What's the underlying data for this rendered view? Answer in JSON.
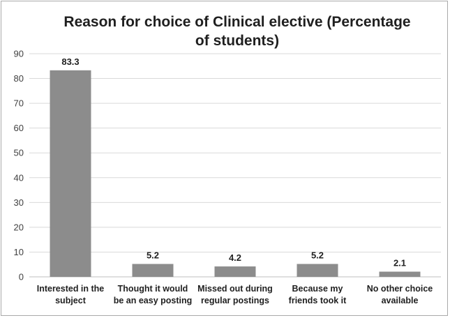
{
  "chart_data": {
    "type": "bar",
    "title": "Reason for choice of Clinical elective (Percentage of students)",
    "title_lines": [
      "Reason for choice of Clinical elective (Percentage",
      "of students)"
    ],
    "categories": [
      "Interested in the subject",
      "Thought it would be an easy posting",
      "Missed out during regular postings",
      "Because my friends took it",
      "No other choice available"
    ],
    "category_lines": [
      [
        "Interested in the",
        "subject"
      ],
      [
        "Thought it would",
        "be an easy posting"
      ],
      [
        "Missed out during",
        "regular postings"
      ],
      [
        "Because my",
        "friends took it"
      ],
      [
        "No other choice",
        "available"
      ]
    ],
    "values": [
      83.3,
      5.2,
      4.2,
      5.2,
      2.1
    ],
    "data_labels": [
      "83.3",
      "5.2",
      "4.2",
      "5.2",
      "2.1"
    ],
    "ylim": [
      0,
      90
    ],
    "yticks": [
      "0",
      "10",
      "20",
      "30",
      "40",
      "50",
      "60",
      "70",
      "80",
      "90"
    ],
    "grid": true,
    "xlabel": "",
    "ylabel": "",
    "bar_color": "#8c8c8c",
    "grid_color": "#d9d9d9"
  }
}
